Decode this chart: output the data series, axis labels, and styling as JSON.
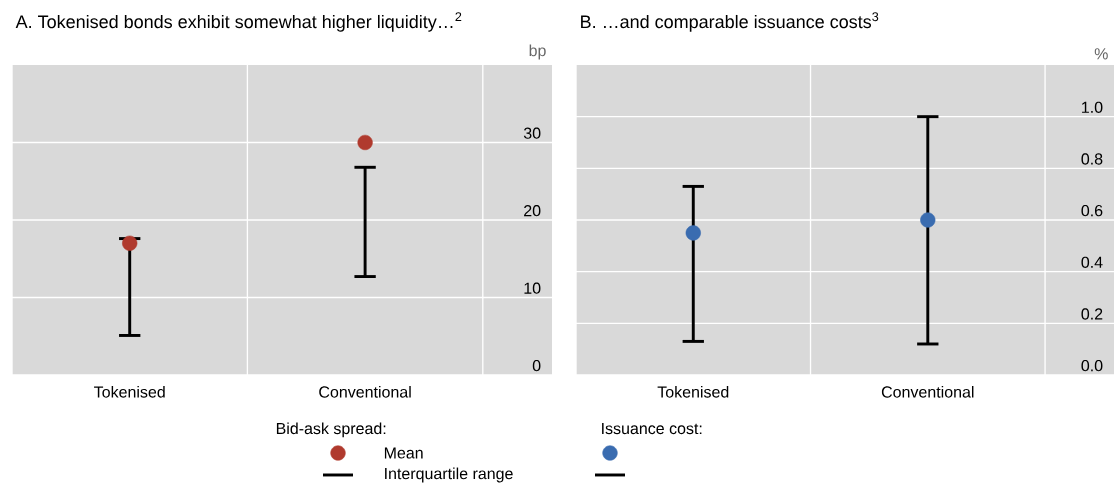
{
  "chart_data": [
    {
      "type": "scatter",
      "title": "A. Tokenised bonds exhibit somewhat higher liquidity…$^{2}$",
      "ylabel": "bp",
      "categories": [
        "Tokenised",
        "Conventional"
      ],
      "series": [
        {
          "name": "Mean",
          "color": "#b03a2e",
          "values": [
            17.0,
            30.0
          ],
          "errors": [
            [
              5.1,
              17.6
            ],
            [
              12.7,
              26.8
            ]
          ]
        }
      ],
      "ylim": [
        0,
        40
      ],
      "yticks": [
        0,
        10,
        20,
        30
      ],
      "grid": true,
      "legend": "bottom",
      "legend_title": "Bid-ask spread:",
      "marker": "circle",
      "annotations": [
        "Interquartile range"
      ]
    },
    {
      "type": "scatter",
      "title": "B. …and comparable issuance costs$^{3}$",
      "ylabel": "%",
      "categories": [
        "Tokenised",
        "Conventional"
      ],
      "series": [
        {
          "color": "#3a6cb0",
          "values": [
            0.55,
            0.6
          ],
          "errors": [
            [
              0.13,
              0.73
            ],
            [
              0.12,
              1.0
            ]
          ]
        }
      ],
      "ylim": [
        0,
        1.2
      ],
      "yticks": [
        {
          "value": 0,
          "label": "0.0"
        },
        {
          "value": 0.2,
          "label": "0.2"
        },
        {
          "value": 0.4,
          "label": "0.4"
        },
        {
          "value": 0.6,
          "label": "0.6"
        },
        {
          "value": 0.8,
          "label": "0.8"
        },
        {
          "value": 1.0,
          "label": "1.0"
        }
      ],
      "grid": true,
      "legend_title": "Issuance cost:",
      "marker": "circle"
    }
  ]
}
